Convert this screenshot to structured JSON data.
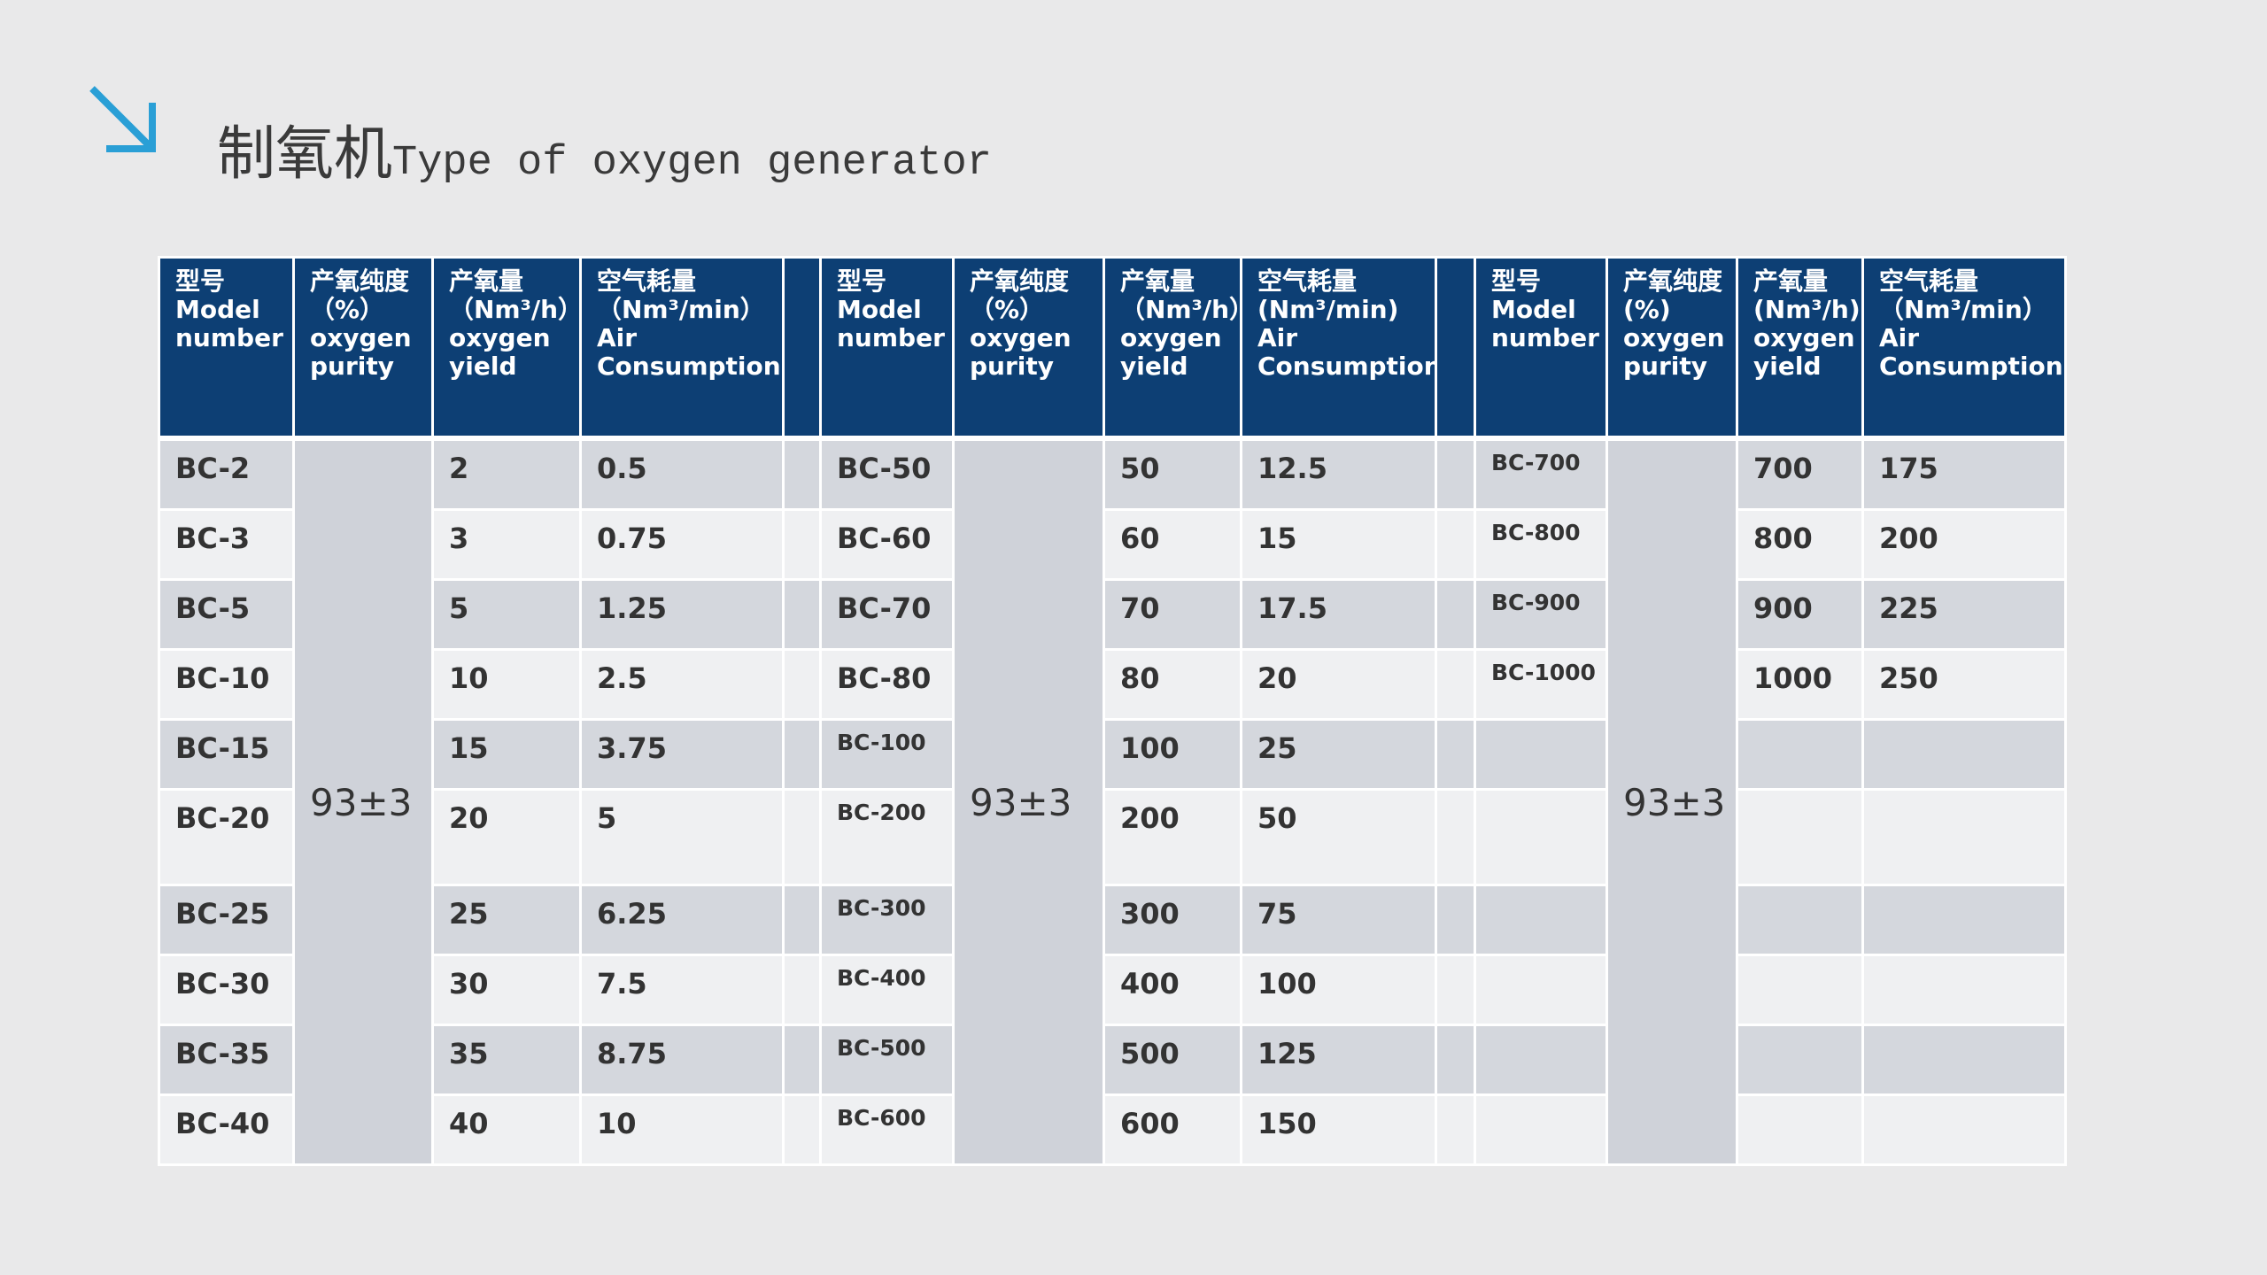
{
  "header": {
    "title_cn": "制氧机",
    "title_en": "Type of oxygen generator"
  },
  "table": {
    "groups": [
      {
        "columns": [
          [
            "型号",
            "Model",
            "number"
          ],
          [
            "产氧纯度",
            "（%）",
            "oxygen",
            "purity"
          ],
          [
            "产氧量",
            "（Nm³/h）",
            "oxygen",
            "yield"
          ],
          [
            "空气耗量",
            "（Nm³/min）",
            "Air",
            "Consumption"
          ]
        ],
        "purity": "93±3",
        "rows": [
          [
            "BC-2",
            "2",
            "0.5"
          ],
          [
            "BC-3",
            "3",
            "0.75"
          ],
          [
            "BC-5",
            "5",
            "1.25"
          ],
          [
            "BC-10",
            "10",
            "2.5"
          ],
          [
            "BC-15",
            "15",
            "3.75"
          ],
          [
            "BC-20",
            "20",
            "5"
          ],
          [
            "BC-25",
            "25",
            "6.25"
          ],
          [
            "BC-30",
            "30",
            "7.5"
          ],
          [
            "BC-35",
            "35",
            "8.75"
          ],
          [
            "BC-40",
            "40",
            "10"
          ]
        ]
      },
      {
        "columns": [
          [
            "型号",
            "Model",
            "number"
          ],
          [
            "产氧纯度",
            "（%）",
            "oxygen",
            "purity"
          ],
          [
            "产氧量",
            "（Nm³/h）",
            "oxygen",
            "yield"
          ],
          [
            "空气耗量",
            "(Nm³/min)",
            "Air",
            "Consumption"
          ]
        ],
        "purity": "93±3",
        "rows": [
          [
            "BC-50",
            "50",
            "12.5"
          ],
          [
            "BC-60",
            "60",
            "15"
          ],
          [
            "BC-70",
            "70",
            "17.5"
          ],
          [
            "BC-80",
            "80",
            "20"
          ],
          [
            "BC-100",
            "100",
            "25"
          ],
          [
            "BC-200",
            "200",
            "50"
          ],
          [
            "BC-300",
            "300",
            "75"
          ],
          [
            "BC-400",
            "400",
            "100"
          ],
          [
            "BC-500",
            "500",
            "125"
          ],
          [
            "BC-600",
            "600",
            "150"
          ]
        ]
      },
      {
        "columns": [
          [
            "型号",
            "Model",
            "number"
          ],
          [
            "产氧纯度",
            "(%)",
            "oxygen",
            "purity"
          ],
          [
            "产氧量",
            "(Nm³/h)",
            "oxygen",
            "yield"
          ],
          [
            "空气耗量",
            "（Nm³/min）",
            "Air",
            "Consumption"
          ]
        ],
        "purity": "93±3",
        "rows": [
          [
            "BC-700",
            "700",
            "175"
          ],
          [
            "BC-800",
            "800",
            "200"
          ],
          [
            "BC-900",
            "900",
            "225"
          ],
          [
            "BC-1000",
            "1000",
            "250"
          ]
        ]
      }
    ]
  }
}
